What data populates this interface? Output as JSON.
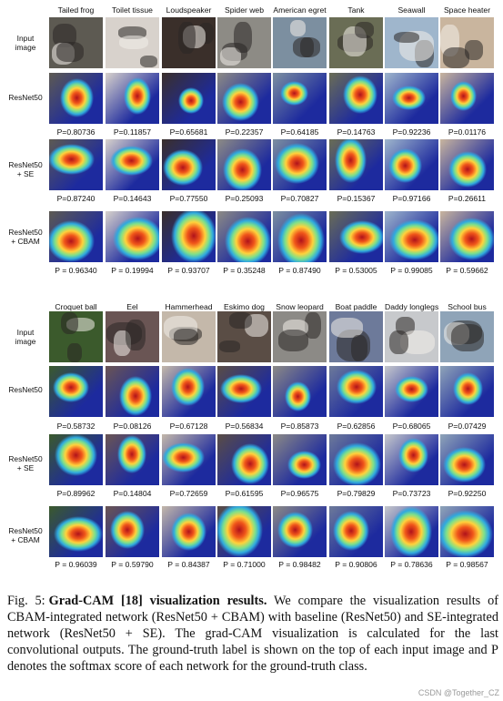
{
  "panels": [
    {
      "classes": [
        "Tailed frog",
        "Toilet tissue",
        "Loudspeaker",
        "Spider web",
        "American egret",
        "Tank",
        "Seawall",
        "Space heater"
      ],
      "rows": [
        {
          "label": "Input\nimage",
          "kind": "input",
          "pvals": null
        },
        {
          "label": "ResNet50",
          "kind": "cam",
          "pvals": [
            "P=0.80736",
            "P=0.11857",
            "P=0.65681",
            "P=0.22357",
            "P=0.64185",
            "P=0.14763",
            "P=0.92236",
            "P=0.01176"
          ]
        },
        {
          "label": "ResNet50\n+ SE",
          "kind": "cam",
          "pvals": [
            "P=0.87240",
            "P=0.14643",
            "P=0.77550",
            "P=0.25093",
            "P=0.70827",
            "P=0.15367",
            "P=0.97166",
            "P=0.26611"
          ]
        },
        {
          "label": "ResNet50\n+ CBAM",
          "kind": "cam",
          "pvals": [
            "P = 0.96340",
            "P = 0.19994",
            "P = 0.93707",
            "P = 0.35248",
            "P = 0.87490",
            "P = 0.53005",
            "P = 0.99085",
            "P = 0.59662"
          ]
        }
      ]
    },
    {
      "classes": [
        "Croquet ball",
        "Eel",
        "Hammerhead",
        "Eskimo dog",
        "Snow leopard",
        "Boat paddle",
        "Daddy longlegs",
        "School bus"
      ],
      "rows": [
        {
          "label": "Input\nimage",
          "kind": "input",
          "pvals": null
        },
        {
          "label": "ResNet50",
          "kind": "cam",
          "pvals": [
            "P=0.58732",
            "P=0.08126",
            "P=0.67128",
            "P=0.56834",
            "P=0.85873",
            "P=0.62856",
            "P=0.68065",
            "P=0.07429"
          ]
        },
        {
          "label": "ResNet50\n+ SE",
          "kind": "cam",
          "pvals": [
            "P=0.89962",
            "P=0.14804",
            "P=0.72659",
            "P=0.61595",
            "P=0.96575",
            "P=0.79829",
            "P=0.73723",
            "P=0.92250"
          ]
        },
        {
          "label": "ResNet50\n+ CBAM",
          "kind": "cam",
          "pvals": [
            "P = 0.96039",
            "P = 0.59790",
            "P = 0.84387",
            "P = 0.71000",
            "P = 0.98482",
            "P = 0.90806",
            "P = 0.78636",
            "P = 0.98567"
          ]
        }
      ]
    }
  ],
  "caption": {
    "lead": "Fig. 5:",
    "bold": "Grad-CAM [18] visualization results.",
    "text": "We compare the visualization results of CBAM-integrated network (ResNet50 + CBAM) with baseline (ResNet50) and SE-integrated network (ResNet50 + SE). The grad-CAM visualization is calculated for the last convolutional outputs. The ground-truth label is shown on the top of each input image and P denotes the softmax score of each network for the ground-truth class."
  },
  "watermark": "CSDN @Together_CZ",
  "colors": {
    "input_tones": [
      "#5d5a52",
      "#d8d2cc",
      "#3a2f2a",
      "#8d8b85",
      "#7c8fa0",
      "#6a6d55",
      "#9fb6cc",
      "#c9b59e",
      "#3b5a2c",
      "#6a5554",
      "#c4b8aa",
      "#5a4d45",
      "#8c8a86",
      "#6d7a9a",
      "#c7c9cc",
      "#8fa4b8"
    ],
    "cam_base": "#1d2a9e"
  }
}
